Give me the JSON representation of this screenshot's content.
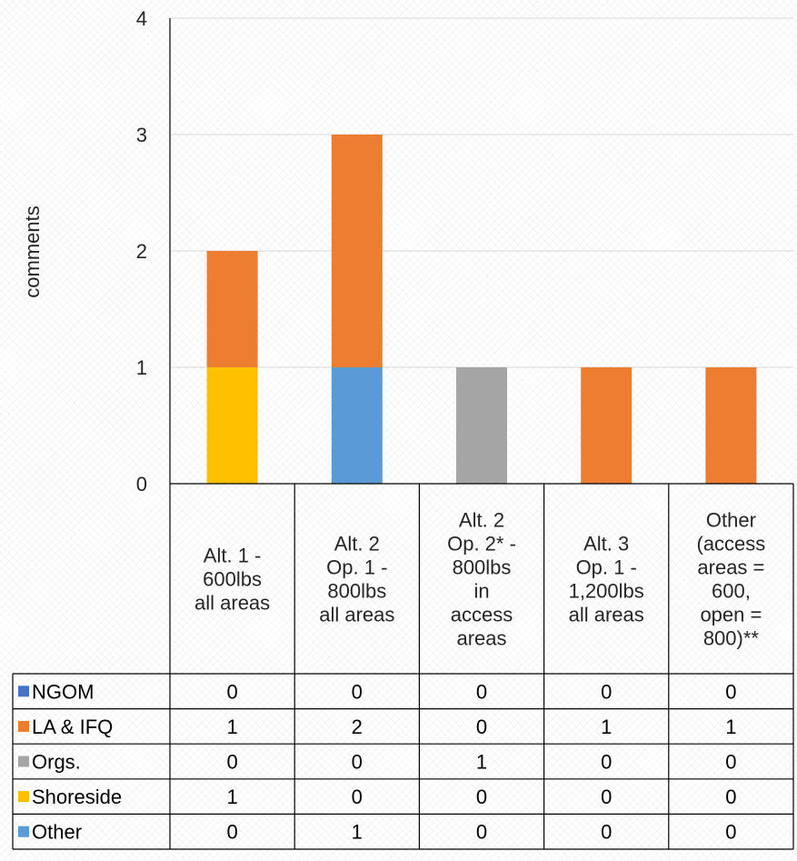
{
  "chart_data": {
    "type": "bar",
    "stacked": true,
    "ylabel": "comments",
    "ylim": [
      0,
      4
    ],
    "yticks": [
      "0",
      "1",
      "2",
      "3",
      "4"
    ],
    "grid": true,
    "legend_placement": "data-table",
    "categories": [
      [
        "Alt. 1 -",
        "600lbs",
        "all areas"
      ],
      [
        "Alt. 2",
        "Op. 1 -",
        "800lbs",
        "all areas"
      ],
      [
        "Alt. 2",
        "Op. 2* -",
        "800lbs",
        "in",
        "access",
        "areas"
      ],
      [
        "Alt. 3",
        "Op. 1 -",
        "1,200lbs",
        "all areas"
      ],
      [
        "Other",
        "(access",
        "areas =",
        "600,",
        "open =",
        "800)**"
      ]
    ],
    "series": [
      {
        "name": "NGOM",
        "color": "#4472C4",
        "values": [
          0,
          0,
          0,
          0,
          0
        ]
      },
      {
        "name": "LA & IFQ",
        "color": "#ED7D31",
        "values": [
          1,
          2,
          0,
          1,
          1
        ]
      },
      {
        "name": "Orgs.",
        "color": "#A5A5A5",
        "values": [
          0,
          0,
          1,
          0,
          0
        ]
      },
      {
        "name": "Shoreside",
        "color": "#FFC000",
        "values": [
          1,
          0,
          0,
          0,
          0
        ]
      },
      {
        "name": "Other",
        "color": "#5B9BD5",
        "values": [
          0,
          1,
          0,
          0,
          0
        ]
      }
    ],
    "stack_order": [
      "NGOM",
      "Shoreside",
      "Other",
      "Orgs.",
      "LA & IFQ"
    ]
  }
}
